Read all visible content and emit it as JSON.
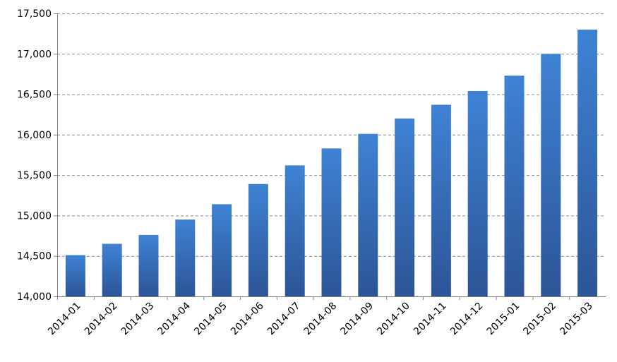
{
  "chart_data": {
    "type": "bar",
    "categories": [
      "2014-01",
      "2014-02",
      "2014-03",
      "2014-04",
      "2014-05",
      "2014-06",
      "2014-07",
      "2014-08",
      "2014-09",
      "2014-10",
      "2014-11",
      "2014-12",
      "2015-01",
      "2015-02",
      "2015-03"
    ],
    "values": [
      14510,
      14650,
      14760,
      14950,
      15140,
      15390,
      15620,
      15830,
      16010,
      16200,
      16370,
      16540,
      16730,
      17000,
      17300
    ],
    "y_ticks": [
      "14,000",
      "14,500",
      "15,000",
      "15,500",
      "16,000",
      "16,500",
      "17,000",
      "17,500"
    ],
    "ylim": [
      14000,
      17500
    ],
    "y_tick_step": 500,
    "grid": true,
    "legend": false,
    "colors": {
      "bar_top": "#3f82d4",
      "bar_bottom": "#2c5596"
    }
  }
}
